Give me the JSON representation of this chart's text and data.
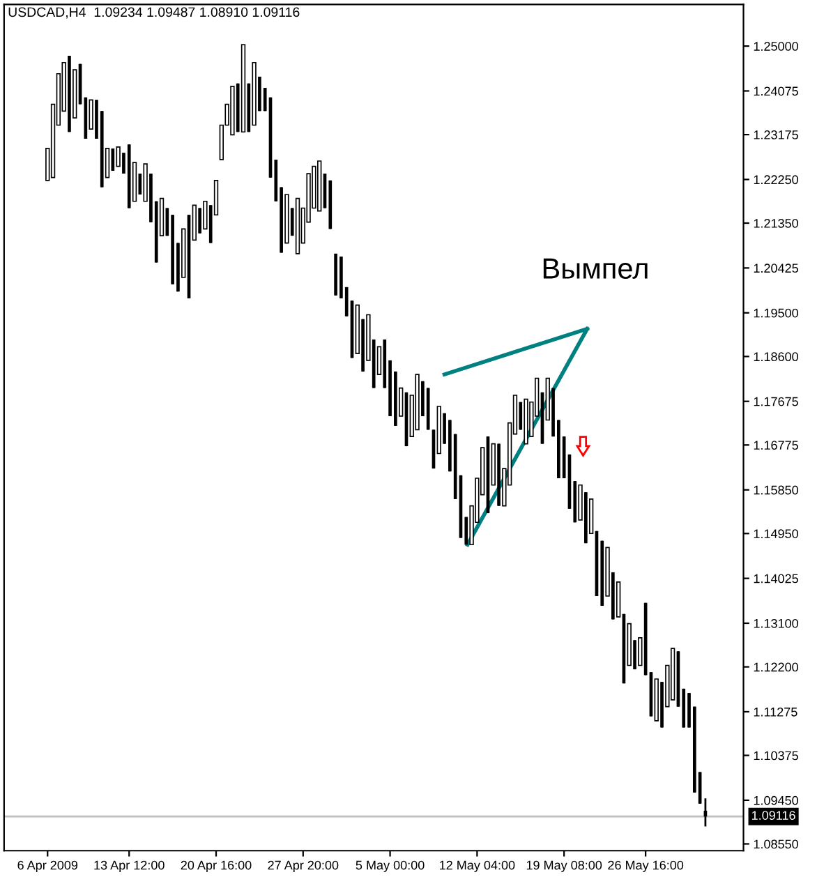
{
  "chart_data": {
    "type": "candlestick",
    "title": "USDCAD,H4  1.09234 1.09487 1.08910 1.09116",
    "annotations": [
      "Вымпел"
    ],
    "categories": [
      "6 Apr 2009",
      null,
      null,
      null,
      null,
      null,
      null,
      null,
      null,
      null,
      null,
      null,
      null,
      null,
      null,
      "13 Apr 12:00",
      null,
      null,
      null,
      null,
      null,
      null,
      null,
      null,
      null,
      null,
      null,
      null,
      null,
      null,
      null,
      "20 Apr 16:00",
      null,
      null,
      null,
      null,
      null,
      null,
      null,
      null,
      null,
      null,
      null,
      null,
      null,
      null,
      null,
      "27 Apr 20:00",
      null,
      null,
      null,
      null,
      null,
      null,
      null,
      null,
      null,
      null,
      null,
      null,
      null,
      null,
      null,
      "5 May 00:00",
      null,
      null,
      null,
      null,
      null,
      null,
      null,
      null,
      null,
      null,
      null,
      null,
      null,
      null,
      null,
      "12 May 04:00",
      null,
      null,
      null,
      null,
      null,
      null,
      null,
      null,
      null,
      null,
      null,
      null,
      null,
      null,
      null,
      "19 May 08:00",
      null,
      null,
      null,
      null,
      null,
      null,
      null,
      null,
      null,
      null,
      null,
      null,
      null,
      null,
      "26 May 16:00",
      null,
      null,
      null,
      null,
      null,
      null,
      null,
      null,
      null,
      null,
      null
    ],
    "color": "#000000",
    "ohlc": [
      [
        1.2223,
        1.2289,
        1.2223,
        1.2289
      ],
      [
        1.2229,
        1.238,
        1.2229,
        1.238
      ],
      [
        1.2337,
        1.2443,
        1.2337,
        1.2443
      ],
      [
        1.2366,
        1.2466,
        1.2366,
        1.2466
      ],
      [
        1.248,
        1.248,
        1.2323,
        1.2323
      ],
      [
        1.2352,
        1.2451,
        1.2352,
        1.2451
      ],
      [
        1.2463,
        1.2463,
        1.238,
        1.238
      ],
      [
        1.2394,
        1.2394,
        1.2309,
        1.2309
      ],
      [
        1.2329,
        1.2389,
        1.2329,
        1.2389
      ],
      [
        1.2389,
        1.2389,
        1.2309,
        1.2309
      ],
      [
        1.2366,
        1.2366,
        1.2209,
        1.2209
      ],
      [
        1.2229,
        1.2289,
        1.2229,
        1.2289
      ],
      [
        1.2289,
        1.2289,
        1.2243,
        1.2243
      ],
      [
        1.2252,
        1.2292,
        1.2252,
        1.2292
      ],
      [
        1.228,
        1.228,
        1.2237,
        1.2237
      ],
      [
        1.2297,
        1.2297,
        1.2166,
        1.2166
      ],
      [
        1.218,
        1.226,
        1.218,
        1.226
      ],
      [
        1.2237,
        1.2237,
        1.2194,
        1.2194
      ],
      [
        1.218,
        1.2257,
        1.218,
        1.2257
      ],
      [
        1.2237,
        1.2237,
        1.2137,
        1.2137
      ],
      [
        1.218,
        1.218,
        1.2054,
        1.2054
      ],
      [
        1.2109,
        1.2186,
        1.2109,
        1.2186
      ],
      [
        1.2166,
        1.2166,
        1.2109,
        1.2109
      ],
      [
        1.2152,
        1.2152,
        1.2009,
        1.2009
      ],
      [
        1.2094,
        1.2094,
        1.1994,
        1.1994
      ],
      [
        1.2023,
        1.2123,
        1.2023,
        1.2123
      ],
      [
        1.2152,
        1.2152,
        1.198,
        1.198
      ],
      [
        1.21,
        1.2172,
        1.21,
        1.2172
      ],
      [
        1.2166,
        1.2166,
        1.2114,
        1.2114
      ],
      [
        1.2123,
        1.218,
        1.2123,
        1.218
      ],
      [
        1.2172,
        1.2172,
        1.2094,
        1.2094
      ],
      [
        1.2152,
        1.2223,
        1.2152,
        1.2223
      ],
      [
        1.2266,
        1.2337,
        1.2266,
        1.2337
      ],
      [
        1.2337,
        1.238,
        1.2337,
        1.238
      ],
      [
        1.2317,
        1.2417,
        1.2317,
        1.2417
      ],
      [
        1.2423,
        1.2423,
        1.2323,
        1.2323
      ],
      [
        1.2323,
        1.2503,
        1.2323,
        1.2503
      ],
      [
        1.2423,
        1.2423,
        1.2323,
        1.2323
      ],
      [
        1.2337,
        1.2466,
        1.2337,
        1.2466
      ],
      [
        1.2437,
        1.2437,
        1.2366,
        1.2366
      ],
      [
        1.2414,
        1.2414,
        1.2366,
        1.2366
      ],
      [
        1.2394,
        1.2394,
        1.2229,
        1.2229
      ],
      [
        1.2266,
        1.2266,
        1.218,
        1.218
      ],
      [
        1.2209,
        1.2209,
        1.2074,
        1.2074
      ],
      [
        1.2094,
        1.2194,
        1.2094,
        1.2194
      ],
      [
        1.2166,
        1.2166,
        1.2109,
        1.2109
      ],
      [
        1.2072,
        1.2186,
        1.2072,
        1.2186
      ],
      [
        1.2094,
        1.2166,
        1.2094,
        1.2166
      ],
      [
        1.2137,
        1.2237,
        1.2137,
        1.2237
      ],
      [
        1.2166,
        1.2252,
        1.2166,
        1.2252
      ],
      [
        1.216,
        1.2263,
        1.216,
        1.2263
      ],
      [
        1.2237,
        1.2237,
        1.2166,
        1.2166
      ],
      [
        1.2223,
        1.2223,
        1.2123,
        1.2123
      ],
      [
        1.2072,
        1.2072,
        1.1986,
        1.1986
      ],
      [
        1.2066,
        1.2066,
        1.198,
        1.198
      ],
      [
        1.2003,
        1.2003,
        1.1943,
        1.1943
      ],
      [
        1.1975,
        1.1975,
        1.1857,
        1.1857
      ],
      [
        1.1866,
        1.1966,
        1.1866,
        1.1966
      ],
      [
        1.1937,
        1.1937,
        1.1829,
        1.1829
      ],
      [
        1.1852,
        1.1946,
        1.1852,
        1.1946
      ],
      [
        1.1895,
        1.1895,
        1.1795,
        1.1795
      ],
      [
        1.1823,
        1.188,
        1.1823,
        1.188
      ],
      [
        1.1895,
        1.1895,
        1.1795,
        1.1795
      ],
      [
        1.1852,
        1.1852,
        1.1737,
        1.1737
      ],
      [
        1.1829,
        1.1829,
        1.1717,
        1.1717
      ],
      [
        1.1737,
        1.1795,
        1.1737,
        1.1795
      ],
      [
        1.1786,
        1.1786,
        1.1675,
        1.1675
      ],
      [
        1.1695,
        1.178,
        1.1695,
        1.178
      ],
      [
        1.1709,
        1.1823,
        1.1709,
        1.1823
      ],
      [
        1.1809,
        1.1809,
        1.1737,
        1.1737
      ],
      [
        1.1795,
        1.1795,
        1.1709,
        1.1709
      ],
      [
        1.1709,
        1.1709,
        1.1629,
        1.1629
      ],
      [
        1.166,
        1.1757,
        1.166,
        1.1757
      ],
      [
        1.1743,
        1.1743,
        1.168,
        1.168
      ],
      [
        1.1729,
        1.1729,
        1.1623,
        1.1623
      ],
      [
        1.17,
        1.17,
        1.1566,
        1.1566
      ],
      [
        1.1615,
        1.1615,
        1.1486,
        1.1486
      ],
      [
        1.1529,
        1.1529,
        1.1472,
        1.1472
      ],
      [
        1.1472,
        1.1552,
        1.1472,
        1.1552
      ],
      [
        1.1518,
        1.1609,
        1.1518,
        1.1609
      ],
      [
        1.1575,
        1.1672,
        1.1575,
        1.1672
      ],
      [
        1.1695,
        1.1695,
        1.1537,
        1.1537
      ],
      [
        1.1595,
        1.168,
        1.1595,
        1.168
      ],
      [
        1.168,
        1.168,
        1.1552,
        1.1552
      ],
      [
        1.1552,
        1.1629,
        1.1552,
        1.1629
      ],
      [
        1.1595,
        1.1723,
        1.1595,
        1.1723
      ],
      [
        1.17,
        1.178,
        1.17,
        1.178
      ],
      [
        1.1766,
        1.1766,
        1.1709,
        1.1709
      ],
      [
        1.168,
        1.1772,
        1.168,
        1.1772
      ],
      [
        1.1695,
        1.1766,
        1.1695,
        1.1766
      ],
      [
        1.1737,
        1.1815,
        1.1737,
        1.1815
      ],
      [
        1.1786,
        1.1786,
        1.168,
        1.168
      ],
      [
        1.1729,
        1.1815,
        1.1729,
        1.1815
      ],
      [
        1.1795,
        1.1795,
        1.1695,
        1.1695
      ],
      [
        1.1729,
        1.1729,
        1.1609,
        1.1609
      ],
      [
        1.1695,
        1.1695,
        1.1609,
        1.1609
      ],
      [
        1.1658,
        1.1658,
        1.1546,
        1.1546
      ],
      [
        1.1603,
        1.1603,
        1.1518,
        1.1518
      ],
      [
        1.1523,
        1.1595,
        1.1523,
        1.1595
      ],
      [
        1.158,
        1.158,
        1.1475,
        1.1475
      ],
      [
        1.1495,
        1.1566,
        1.1495,
        1.1566
      ],
      [
        1.15,
        1.15,
        1.1366,
        1.1366
      ],
      [
        1.148,
        1.148,
        1.1346,
        1.1346
      ],
      [
        1.1366,
        1.1466,
        1.1366,
        1.1466
      ],
      [
        1.1415,
        1.1415,
        1.1318,
        1.1318
      ],
      [
        1.1323,
        1.1395,
        1.1323,
        1.1395
      ],
      [
        1.1329,
        1.1329,
        1.1186,
        1.1186
      ],
      [
        1.1223,
        1.1309,
        1.1223,
        1.1309
      ],
      [
        1.1275,
        1.1275,
        1.1215,
        1.1215
      ],
      [
        1.1223,
        1.128,
        1.1223,
        1.128
      ],
      [
        1.1352,
        1.1352,
        1.1203,
        1.1203
      ],
      [
        1.1209,
        1.1209,
        1.1118,
        1.1118
      ],
      [
        1.1109,
        1.1195,
        1.1109,
        1.1195
      ],
      [
        1.1189,
        1.1189,
        1.1095,
        1.1095
      ],
      [
        1.1138,
        1.1223,
        1.1138,
        1.1223
      ],
      [
        1.1152,
        1.1258,
        1.1152,
        1.1258
      ],
      [
        1.1252,
        1.1252,
        1.1138,
        1.1138
      ],
      [
        1.1175,
        1.1175,
        1.1095,
        1.1095
      ],
      [
        1.1166,
        1.1166,
        1.1095,
        1.1095
      ],
      [
        1.1138,
        1.1138,
        1.0961,
        1.0961
      ],
      [
        1.1003,
        1.1003,
        1.0938,
        1.0938
      ],
      [
        1.09234,
        1.09487,
        1.0891,
        1.09116
      ]
    ],
    "ylim": [
      1.0841,
      1.2586
    ],
    "yticks": [
      {
        "value": 1.25,
        "label": "1.25000"
      },
      {
        "value": 1.24075,
        "label": "1.24075"
      },
      {
        "value": 1.23175,
        "label": "1.23175"
      },
      {
        "value": 1.2225,
        "label": "1.22250"
      },
      {
        "value": 1.2135,
        "label": "1.21350"
      },
      {
        "value": 1.20425,
        "label": "1.20425"
      },
      {
        "value": 1.195,
        "label": "1.19500"
      },
      {
        "value": 1.186,
        "label": "1.18600"
      },
      {
        "value": 1.17675,
        "label": "1.17675"
      },
      {
        "value": 1.16775,
        "label": "1.16775"
      },
      {
        "value": 1.1585,
        "label": "1.15850"
      },
      {
        "value": 1.1495,
        "label": "1.14950"
      },
      {
        "value": 1.14025,
        "label": "1.14025"
      },
      {
        "value": 1.131,
        "label": "1.13100"
      },
      {
        "value": 1.122,
        "label": "1.12200"
      },
      {
        "value": 1.11275,
        "label": "1.11275"
      },
      {
        "value": 1.10375,
        "label": "1.10375"
      },
      {
        "value": 1.0945,
        "label": "1.09450"
      },
      {
        "value": 1.0855,
        "label": "1.08550"
      }
    ],
    "ref_lines": [
      {
        "axis": "y",
        "value": 1.09116,
        "label": "1.09116",
        "color": "#c0c0c0"
      }
    ],
    "grid": false
  }
}
